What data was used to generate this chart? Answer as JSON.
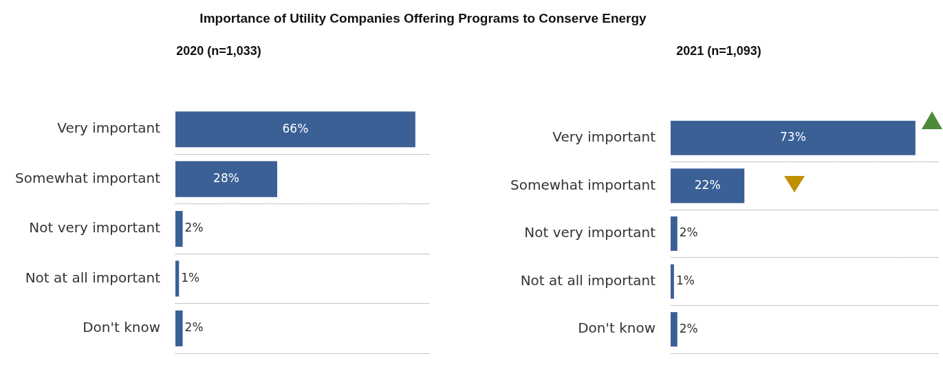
{
  "chart_data": [
    {
      "type": "bar",
      "orientation": "horizontal",
      "title": "Importance of Utility Companies Offering Programs to Conserve Energy",
      "subtitle": "2020 (n=1,033)",
      "categories": [
        "Very important",
        "Somewhat important",
        "Not very important",
        "Not at all important",
        "Don't know"
      ],
      "values": [
        66,
        28,
        2,
        1,
        2
      ],
      "value_labels": [
        "66%",
        "28%",
        "2%",
        "1%",
        "2%"
      ],
      "color": "#3a6096",
      "grid": "y",
      "tick_labels": "y",
      "legend": false
    },
    {
      "type": "bar",
      "orientation": "horizontal",
      "subtitle": "2021 (n=1,093)",
      "categories": [
        "Very important",
        "Somewhat important",
        "Not very important",
        "Not at all important",
        "Don't know"
      ],
      "values": [
        73,
        22,
        2,
        1,
        2
      ],
      "value_labels": [
        "73%",
        "22%",
        "2%",
        "1%",
        "2%"
      ],
      "color": "#3a6096",
      "grid": "y",
      "tick_labels": "y",
      "legend": false
    }
  ]
}
